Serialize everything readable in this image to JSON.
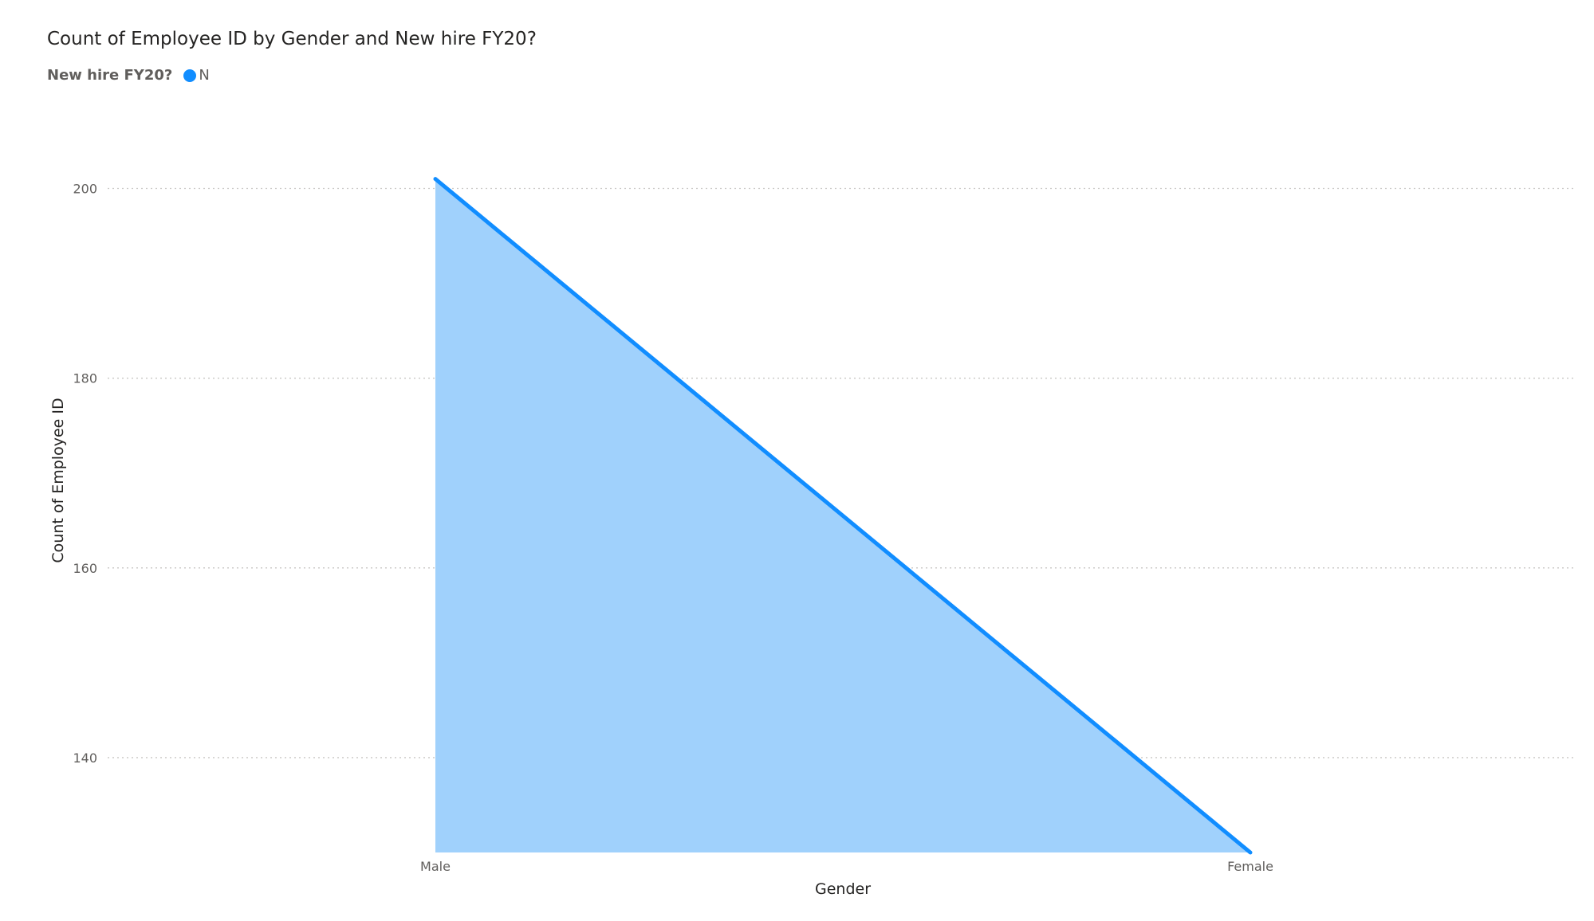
{
  "chart_data": {
    "type": "area",
    "title": "Count of Employee ID by Gender and New hire FY20?",
    "legend": {
      "title": "New hire FY20?",
      "placement": "top-left",
      "entries": [
        {
          "label": "N",
          "color": "#118DFF"
        }
      ]
    },
    "xlabel": "Gender",
    "ylabel": "Count of Employee ID",
    "categories": [
      "Male",
      "Female"
    ],
    "series": [
      {
        "name": "N",
        "values": [
          201,
          130
        ],
        "color": "#118DFF",
        "fill": "#A0D1FC"
      }
    ],
    "ylim": [
      130,
      205
    ],
    "yticks": [
      "140",
      "160",
      "180",
      "200"
    ],
    "grid": true
  }
}
